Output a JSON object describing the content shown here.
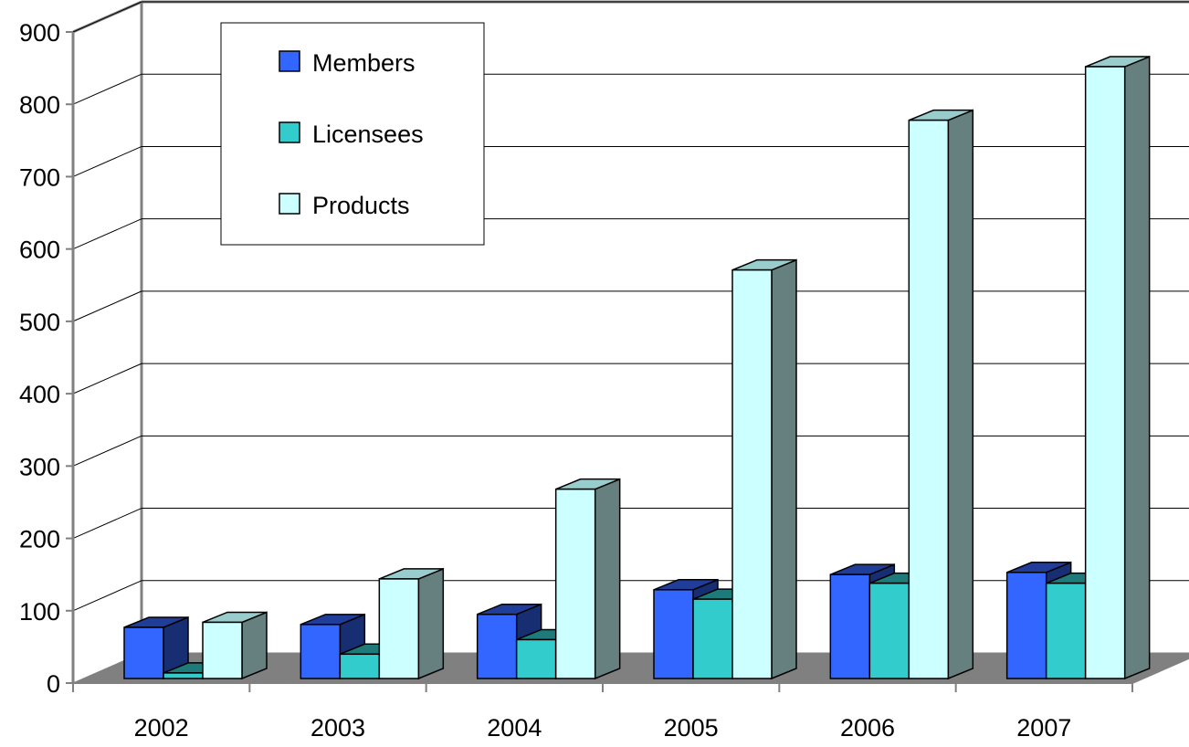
{
  "chart_data": {
    "type": "bar",
    "style": "3d-clustered-column",
    "title": "",
    "xlabel": "",
    "ylabel": "",
    "categories": [
      "2002",
      "2003",
      "2004",
      "2005",
      "2006",
      "2007"
    ],
    "series": [
      {
        "name": "Members",
        "values": [
          77,
          81,
          95,
          129,
          150,
          153
        ],
        "color": "#3366ff"
      },
      {
        "name": "Licensees",
        "values": [
          14,
          40,
          60,
          116,
          138,
          138
        ],
        "color": "#33cccc"
      },
      {
        "name": "Products",
        "values": [
          84,
          144,
          268,
          571,
          778,
          852
        ],
        "color": "#ccffff"
      }
    ],
    "ylim": [
      0,
      900
    ],
    "yticks": [
      "0",
      "100",
      "200",
      "300",
      "400",
      "500",
      "600",
      "700",
      "800",
      "900"
    ],
    "grid": true,
    "legend_position": "top-left"
  }
}
